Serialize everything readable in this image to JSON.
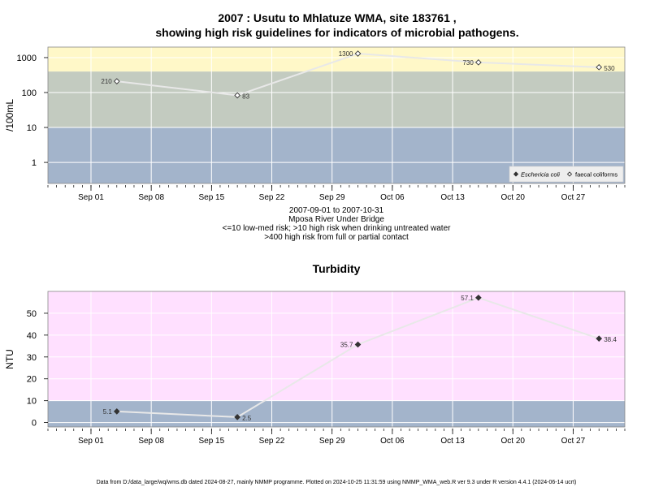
{
  "title_line1": "2007 : Usutu to Mhlatuze WMA, site 183761 ,",
  "title_line2": "showing high risk guidelines for indicators of microbial pathogens.",
  "subtitle_lines": [
    "2007-09-01 to 2007-10-31",
    "Mposa River Under Bridge",
    "<=10 low-med risk; >10 high risk when drinking untreated water",
    ">400 high risk from full or partial contact"
  ],
  "footer": "Data from D:/data_large/wq/wms.db dated 2024-08-27, mainly NMMP programme. Plotted on 2024-10-25 11:31:59 using NMMP_WMA_web.R ver 9.3 under R version 4.4.1 (2024-06-14 ucrt)",
  "colors": {
    "band_blue": "#a3b4cb",
    "band_green": "#c3cbc0",
    "band_yellow": "#fff8c8",
    "band_pink": "#ffe0ff",
    "trend_line": "#e8e8e8",
    "grid": "#ffffff"
  },
  "chart_data": [
    {
      "type": "scatter",
      "title": "",
      "xlabel": "",
      "ylabel": "/100mL",
      "y_scale": "log",
      "ylim": [
        0.25,
        2000
      ],
      "xlim": [
        "2007-08-27",
        "2007-11-02"
      ],
      "x_ticks": [
        "Sep 01",
        "Sep 08",
        "Sep 15",
        "Sep 22",
        "Sep 29",
        "Oct 06",
        "Oct 13",
        "Oct 20",
        "Oct 27"
      ],
      "x_tick_dates": [
        "2007-09-01",
        "2007-09-08",
        "2007-09-15",
        "2007-09-22",
        "2007-09-29",
        "2007-10-06",
        "2007-10-13",
        "2007-10-20",
        "2007-10-27"
      ],
      "y_ticks": [
        "1",
        "10",
        "100",
        "1000"
      ],
      "y_tick_values": [
        1,
        10,
        100,
        1000
      ],
      "bands": [
        {
          "from": 0.25,
          "to": 10,
          "color": "#a3b4cb"
        },
        {
          "from": 10,
          "to": 400,
          "color": "#c3cbc0"
        },
        {
          "from": 400,
          "to": 2000,
          "color": "#fff8c8"
        }
      ],
      "grid": true,
      "legend_position": "bottom-right",
      "series": [
        {
          "name": "Eschericia coli",
          "marker": "filled-diamond",
          "x": [],
          "values": []
        },
        {
          "name": "faecal coliforms",
          "marker": "open-diamond",
          "x": [
            "2007-09-04",
            "2007-09-18",
            "2007-10-02",
            "2007-10-16",
            "2007-10-30"
          ],
          "values": [
            210,
            83,
            1300,
            730,
            530
          ],
          "labels": [
            "210",
            "83",
            "1300",
            "730",
            "530"
          ]
        }
      ]
    },
    {
      "type": "scatter",
      "title": "Turbidity",
      "xlabel": "",
      "ylabel": "NTU",
      "y_scale": "linear",
      "ylim": [
        -2,
        60
      ],
      "xlim": [
        "2007-08-27",
        "2007-11-02"
      ],
      "x_ticks": [
        "Sep 01",
        "Sep 08",
        "Sep 15",
        "Sep 22",
        "Sep 29",
        "Oct 06",
        "Oct 13",
        "Oct 20",
        "Oct 27"
      ],
      "x_tick_dates": [
        "2007-09-01",
        "2007-09-08",
        "2007-09-15",
        "2007-09-22",
        "2007-09-29",
        "2007-10-06",
        "2007-10-13",
        "2007-10-20",
        "2007-10-27"
      ],
      "y_ticks": [
        "0",
        "10",
        "20",
        "30",
        "40",
        "50"
      ],
      "y_tick_values": [
        0,
        10,
        20,
        30,
        40,
        50
      ],
      "bands": [
        {
          "from": -2,
          "to": 10,
          "color": "#a3b4cb"
        },
        {
          "from": 10,
          "to": 60,
          "color": "#ffe0ff"
        }
      ],
      "grid": true,
      "series": [
        {
          "marker": "filled-diamond",
          "x": [
            "2007-09-04",
            "2007-09-18",
            "2007-10-02",
            "2007-10-16",
            "2007-10-30"
          ],
          "values": [
            5.1,
            2.5,
            35.7,
            57.1,
            38.4
          ],
          "labels": [
            "5.1",
            "2.5",
            "35.7",
            "57.1",
            "38.4"
          ]
        }
      ]
    }
  ]
}
